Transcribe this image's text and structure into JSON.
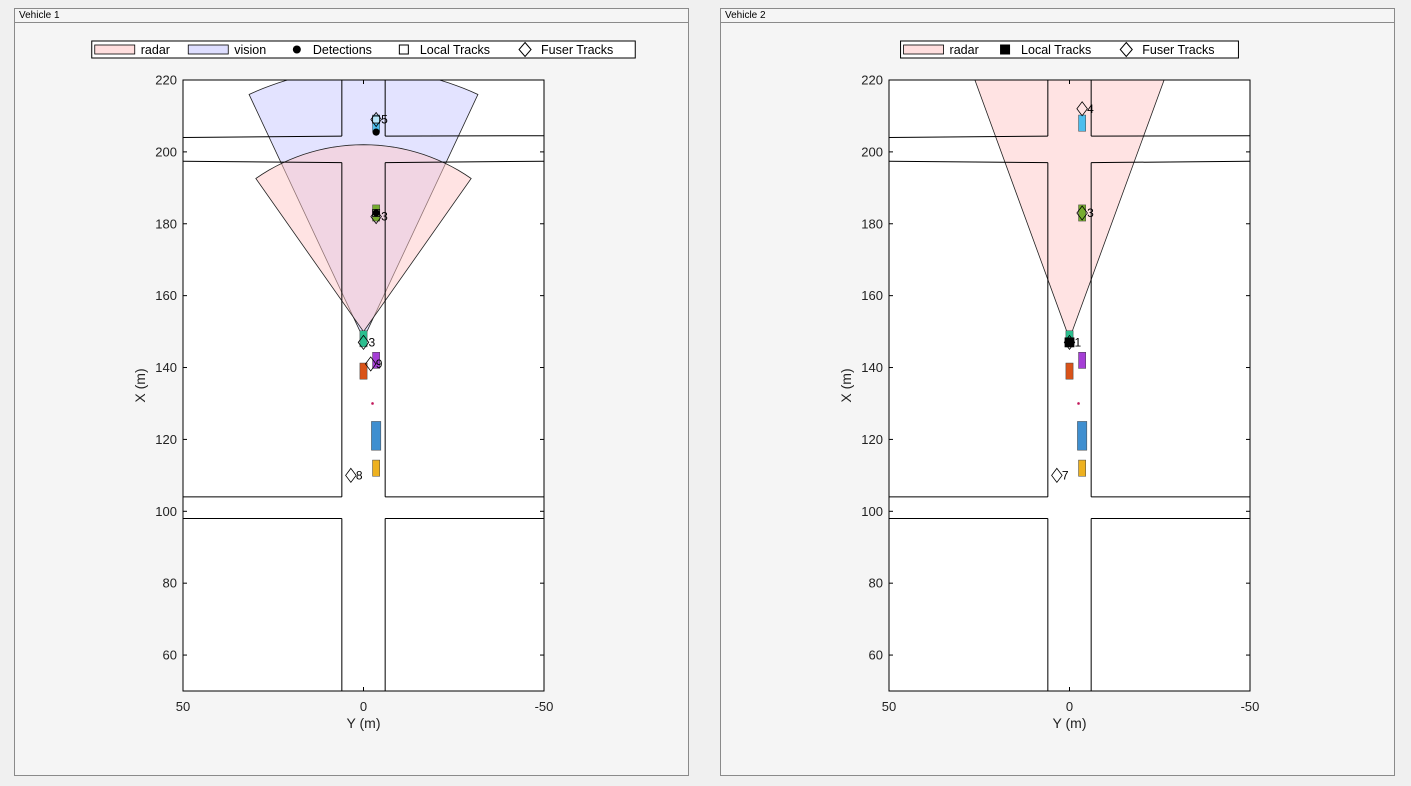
{
  "window": {
    "panels": [
      {
        "title": "Vehicle 1"
      },
      {
        "title": "Vehicle 2"
      }
    ]
  },
  "colors": {
    "radar_fill": "#ffc8c8",
    "vision_fill": "#c8c8ff",
    "overlap_fill": "#d4b0e0",
    "road_line": "#000000",
    "car_blue_light": "#4dbeee",
    "car_green_dark": "#77ac30",
    "car_teal": "#2bbf8f",
    "car_purple": "#a53ed6",
    "car_orange": "#d95319",
    "car_blue": "#3f8fd0",
    "car_yellow": "#edb120",
    "pedestrian": "#c2185b"
  },
  "chart_data": [
    {
      "type": "scatter",
      "title": "",
      "xlabel": "Y (m)",
      "ylabel": "X (m)",
      "xlim": [
        50,
        -50
      ],
      "ylim": [
        50,
        220
      ],
      "xticks": [
        50,
        0,
        -50
      ],
      "yticks": [
        60,
        80,
        100,
        120,
        140,
        160,
        180,
        200,
        220
      ],
      "xtick_labels": [
        "50",
        "0",
        "-50"
      ],
      "ytick_labels": [
        "60",
        "80",
        "100",
        "120",
        "140",
        "160",
        "180",
        "200",
        "220"
      ],
      "grid": false,
      "legend": {
        "placement": "top",
        "entries": [
          {
            "label": "radar",
            "kind": "patch",
            "color": "#ffc8c8"
          },
          {
            "label": "vision",
            "kind": "patch",
            "color": "#c8c8ff"
          },
          {
            "label": "Detections",
            "kind": "dot"
          },
          {
            "label": "Local Tracks",
            "kind": "square-open"
          },
          {
            "label": "Fuser Tracks",
            "kind": "diamond-open"
          }
        ]
      },
      "coverage": [
        {
          "sensor": "vision",
          "origin": [
            148,
            0
          ],
          "range": 75,
          "fov_deg": 50
        },
        {
          "sensor": "radar",
          "origin": [
            150,
            0
          ],
          "range": 52,
          "fov_deg": 70
        }
      ],
      "vehicles": [
        {
          "x": 208,
          "y": -3.5,
          "len": 4.5,
          "wid": 2,
          "color": "car_blue_light"
        },
        {
          "x": 183,
          "y": -3.5,
          "len": 4.5,
          "wid": 2,
          "color": "car_green_dark"
        },
        {
          "x": 148,
          "y": 0,
          "len": 4.5,
          "wid": 2,
          "color": "car_teal"
        },
        {
          "x": 142,
          "y": -3.5,
          "len": 4.5,
          "wid": 2,
          "color": "car_purple"
        },
        {
          "x": 139,
          "y": 0,
          "len": 4.5,
          "wid": 2,
          "color": "car_orange"
        },
        {
          "x": 121,
          "y": -3.5,
          "len": 8,
          "wid": 2.6,
          "color": "car_blue"
        },
        {
          "x": 112,
          "y": -3.5,
          "len": 4.5,
          "wid": 2,
          "color": "car_yellow"
        }
      ],
      "pedestrians": [
        {
          "x": 130,
          "y": -2.5
        }
      ],
      "detections": [
        {
          "x": 205.5,
          "y": -3.5
        },
        {
          "x": 183,
          "y": -3.5
        }
      ],
      "local_tracks": [
        {
          "x": 209,
          "y": -3.5
        },
        {
          "x": 183,
          "y": -3.5
        }
      ],
      "fuser_tracks": [
        {
          "x": 209,
          "y": -3.5,
          "label": "5"
        },
        {
          "x": 182,
          "y": -3.5,
          "label": "3"
        },
        {
          "x": 147,
          "y": 0,
          "label": "3"
        },
        {
          "x": 141,
          "y": -2,
          "label": "9"
        },
        {
          "x": 110,
          "y": 3.5,
          "label": "8"
        }
      ]
    },
    {
      "type": "scatter",
      "title": "",
      "xlabel": "Y (m)",
      "ylabel": "X (m)",
      "xlim": [
        50,
        -50
      ],
      "ylim": [
        50,
        220
      ],
      "xticks": [
        50,
        0,
        -50
      ],
      "yticks": [
        60,
        80,
        100,
        120,
        140,
        160,
        180,
        200,
        220
      ],
      "xtick_labels": [
        "50",
        "0",
        "-50"
      ],
      "ytick_labels": [
        "60",
        "80",
        "100",
        "120",
        "140",
        "160",
        "180",
        "200",
        "220"
      ],
      "grid": false,
      "legend": {
        "placement": "top",
        "entries": [
          {
            "label": "radar",
            "kind": "patch",
            "color": "#ffc8c8"
          },
          {
            "label": "Local Tracks",
            "kind": "square-filled"
          },
          {
            "label": "Fuser Tracks",
            "kind": "diamond-open"
          }
        ]
      },
      "coverage": [
        {
          "sensor": "radar",
          "origin": [
            148,
            0
          ],
          "range": 80,
          "fov_deg": 40
        }
      ],
      "vehicles": [
        {
          "x": 208,
          "y": -3.5,
          "len": 4.5,
          "wid": 2,
          "color": "car_blue_light"
        },
        {
          "x": 183,
          "y": -3.5,
          "len": 4.5,
          "wid": 2,
          "color": "car_green_dark"
        },
        {
          "x": 148,
          "y": 0,
          "len": 4.5,
          "wid": 2,
          "color": "car_teal"
        },
        {
          "x": 142,
          "y": -3.5,
          "len": 4.5,
          "wid": 2,
          "color": "car_purple"
        },
        {
          "x": 139,
          "y": 0,
          "len": 4.5,
          "wid": 2,
          "color": "car_orange"
        },
        {
          "x": 121,
          "y": -3.5,
          "len": 8,
          "wid": 2.6,
          "color": "car_blue"
        },
        {
          "x": 112,
          "y": -3.5,
          "len": 4.5,
          "wid": 2,
          "color": "car_yellow"
        }
      ],
      "pedestrians": [
        {
          "x": 130,
          "y": -2.5
        }
      ],
      "detections": [],
      "local_tracks": [
        {
          "x": 147,
          "y": 0
        }
      ],
      "fuser_tracks": [
        {
          "x": 212,
          "y": -3.5,
          "label": "4"
        },
        {
          "x": 183,
          "y": -3.5,
          "label": "3"
        },
        {
          "x": 147,
          "y": 0,
          "label": "1"
        },
        {
          "x": 110,
          "y": 3.5,
          "label": "7"
        }
      ]
    }
  ]
}
